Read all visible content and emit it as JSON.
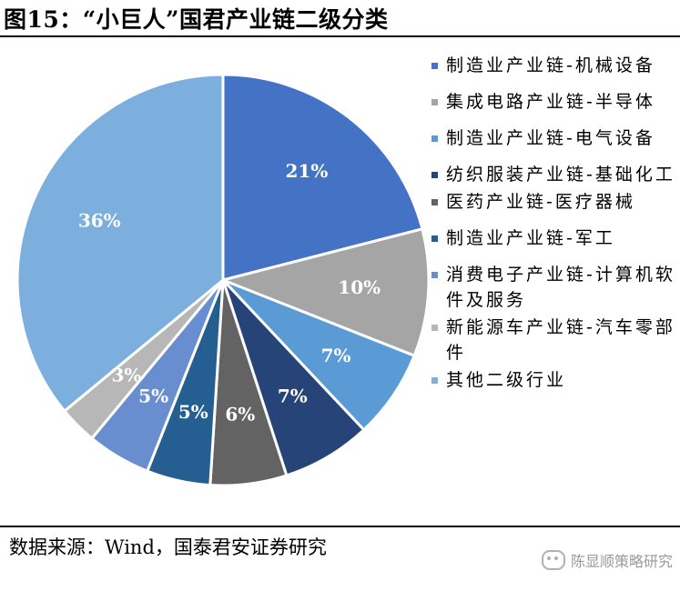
{
  "title": "图15：“小巨人”国君产业链二级分类",
  "source": "数据来源：Wind，国泰君安证券研究",
  "watermark": {
    "text": "陈显顺策略研究",
    "logo_icon": "wechat-icon"
  },
  "chart_data": {
    "type": "pie",
    "start_angle_deg": 0,
    "direction": "clockwise",
    "legend_position": "right",
    "slices": [
      {
        "label": "制造业产业链-机械设备",
        "value": 21,
        "display": "21%",
        "color": "#4472c4"
      },
      {
        "label": "集成电路产业链-半导体",
        "value": 10,
        "display": "10%",
        "color": "#a5a5a5"
      },
      {
        "label": "制造业产业链-电气设备",
        "value": 7,
        "display": "7%",
        "color": "#5b9bd5"
      },
      {
        "label": "纺织服装产业链-基础化工",
        "value": 7,
        "display": "7%",
        "color": "#264478"
      },
      {
        "label": "医药产业链-医疗器械",
        "value": 6,
        "display": "6%",
        "color": "#636363"
      },
      {
        "label": "制造业产业链-军工",
        "value": 5,
        "display": "5%",
        "color": "#255e91"
      },
      {
        "label": "消费电子产业链-计算机软件及服务",
        "value": 5,
        "display": "5%",
        "color": "#698ed0"
      },
      {
        "label": "新能源车产业链-汽车零部件",
        "value": 3,
        "display": "3%",
        "color": "#b7b7b7"
      },
      {
        "label": "其他二级行业",
        "value": 36,
        "display": "36%",
        "color": "#7cafdd"
      }
    ]
  }
}
